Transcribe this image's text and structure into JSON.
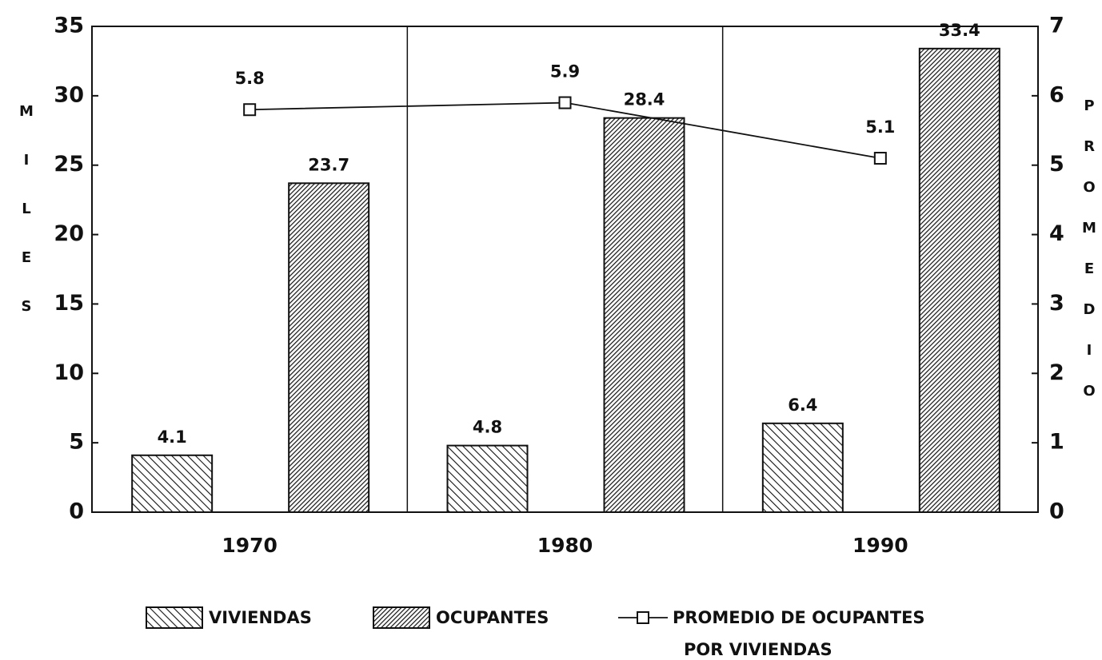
{
  "chart_data": {
    "type": "bar",
    "categories": [
      "1970",
      "1980",
      "1990"
    ],
    "series": [
      {
        "name": "VIVIENDAS",
        "color": "#111111",
        "values": [
          4.1,
          4.8,
          6.4
        ]
      },
      {
        "name": "OCUPANTES",
        "color": "#111111",
        "values": [
          23.7,
          28.4,
          33.4
        ]
      },
      {
        "name": "PROMEDIO DE OCUPANTES POR VIVIENDAS",
        "type": "line",
        "axis": "y2",
        "color": "#111111",
        "values": [
          5.8,
          5.9,
          5.1
        ]
      }
    ],
    "y_label": "MILES",
    "y2_label": "PROMEDIO",
    "ylim": [
      0,
      35
    ],
    "yticks": [
      0,
      5,
      10,
      15,
      20,
      25,
      30,
      35
    ],
    "y2lim": [
      0,
      7
    ],
    "y2ticks": [
      0,
      1,
      2,
      3,
      4,
      5,
      6,
      7
    ],
    "legend": "bottom"
  }
}
